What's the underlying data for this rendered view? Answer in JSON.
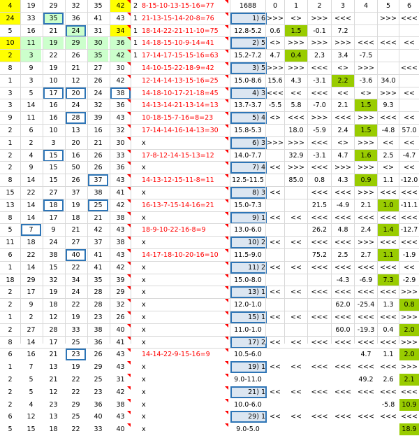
{
  "header_label": "1688",
  "col_headers": [
    "0",
    "1",
    "2",
    "3",
    "4",
    "5",
    "6"
  ],
  "rows": [
    {
      "nums": [
        "4",
        "19",
        "29",
        "32",
        "35",
        "42"
      ],
      "hl": [
        "y",
        "",
        "",
        "",
        "",
        "y"
      ],
      "box": [],
      "n": "2",
      "seq": "8-15-10-13-15-16=77",
      "red": [],
      "sc": "",
      "ratio": "",
      "v": []
    },
    {
      "nums": [
        "24",
        "33",
        "35",
        "36",
        "41",
        "43"
      ],
      "hl": [
        "y",
        "",
        "g",
        "",
        "",
        ""
      ],
      "box": [
        2
      ],
      "n": "1",
      "seq": "21-13-15-14-20-8=76",
      "sc": "1)   6",
      "ratio": "",
      "v": [
        ">>>",
        "<>",
        ">>>",
        "<<<",
        "",
        ">>>",
        "<<<"
      ]
    },
    {
      "nums": [
        "5",
        "16",
        "21",
        "24",
        "31",
        "34"
      ],
      "hl": [
        "",
        "",
        "",
        "g",
        "",
        "y"
      ],
      "box": [
        3
      ],
      "n": "1",
      "seq": "18-14-22-21-11-10=75",
      "sc": "",
      "ratio": "12.8-5.2",
      "v": [
        "0.6",
        "1.5",
        "-0.1",
        "7.2",
        "",
        "",
        ""
      ],
      "vhl": [
        "",
        "lg",
        "",
        "",
        "",
        "",
        ""
      ]
    },
    {
      "nums": [
        "10",
        "11",
        "19",
        "29",
        "30",
        "36"
      ],
      "hl": [
        "y",
        "g",
        "g",
        "g",
        "g",
        "g"
      ],
      "box": [],
      "n": "1",
      "seq": "14-18-15-10-9-14=41",
      "sc": "2)   5",
      "ratio": "",
      "v": [
        "<>",
        ">>>",
        ">>>",
        ">>>",
        "<<<",
        "<<<",
        "<<"
      ]
    },
    {
      "nums": [
        "2",
        "3",
        "22",
        "26",
        "35",
        "42"
      ],
      "hl": [
        "y",
        "g",
        "",
        "",
        "g",
        "g"
      ],
      "box": [],
      "n": "1",
      "seq": "17-14-17-15-15-16=63",
      "sc": "",
      "ratio": "15.2-7.2",
      "v": [
        "4.7",
        "0.4",
        "2.3",
        "3.4",
        "-7.5",
        "",
        ""
      ],
      "vhl": [
        "",
        "lg",
        "",
        "",
        "",
        "",
        ""
      ]
    },
    {
      "nums": [
        "8",
        "9",
        "19",
        "21",
        "27",
        "30"
      ],
      "hl": [],
      "box": [],
      "n": "",
      "seq": "14-10-15-22-18-9=42",
      "sc": "3)   5",
      "ratio": "",
      "v": [
        ">>>",
        ">>>",
        "<<<",
        "<>",
        ">>>",
        "",
        "<<<"
      ],
      "vhl": [
        "",
        "",
        "pu",
        "",
        "",
        "",
        ""
      ]
    },
    {
      "nums": [
        "1",
        "3",
        "10",
        "12",
        "26",
        "42"
      ],
      "hl": [],
      "box": [],
      "n": "",
      "seq": "12-14-14-13-15-16=25",
      "sc": "",
      "ratio": "15.0-8.6",
      "v": [
        "15.6",
        "4.3",
        "-3.1",
        "2.2",
        "-3.6",
        "34.0",
        ""
      ],
      "vhl": [
        "",
        "",
        "",
        "lg",
        "",
        "",
        ""
      ]
    },
    {
      "nums": [
        "3",
        "5",
        "17",
        "20",
        "24",
        "38"
      ],
      "hl": [],
      "box": [
        2,
        3,
        5
      ],
      "n": "",
      "seq": "14-18-10-17-21-18=45",
      "sc": "4)   3",
      "ratio": "",
      "v": [
        "<<<",
        "<<",
        "<<<",
        "<<",
        "<>",
        ">>>",
        "<<"
      ]
    },
    {
      "nums": [
        "3",
        "14",
        "16",
        "24",
        "32",
        "36"
      ],
      "hl": [],
      "box": [],
      "n": "",
      "seq": "14-13-14-21-13-14=13",
      "sc": "",
      "ratio": "13.7-3.7",
      "v": [
        "-5.5",
        "5.8",
        "-7.0",
        "2.1",
        "1.5",
        "9.3",
        ""
      ],
      "vhl": [
        "",
        "",
        "",
        "",
        "lg",
        "",
        ""
      ]
    },
    {
      "nums": [
        "9",
        "11",
        "16",
        "28",
        "39",
        "43"
      ],
      "hl": [],
      "box": [
        3
      ],
      "n": "",
      "seq": "10-18-15-7-16=8=23",
      "sc": "5)   4",
      "ratio": "",
      "v": [
        "<>",
        "<<<",
        ">>>",
        "<<<",
        ">>>",
        "<<<",
        "<<"
      ]
    },
    {
      "nums": [
        "2",
        "6",
        "10",
        "13",
        "16",
        "32"
      ],
      "hl": [],
      "box": [],
      "n": "",
      "seq": "17-14-14-16-14-13=30",
      "sc": "",
      "ratio": "15.8-5.3",
      "v": [
        "",
        "18.0",
        "-5.9",
        "2.4",
        "1.5",
        "-4.8",
        "57.0"
      ],
      "vhl": [
        "",
        "",
        "",
        "",
        "lg",
        "",
        ""
      ]
    },
    {
      "nums": [
        "1",
        "2",
        "3",
        "20",
        "21",
        "30"
      ],
      "hl": [],
      "box": [],
      "n": "",
      "seq": "x",
      "sc": "6)   3",
      "ratio": "",
      "v": [
        ">>>",
        ">>>",
        "<<<",
        "<>",
        ">>>",
        "<<",
        "<<"
      ]
    },
    {
      "nums": [
        "2",
        "4",
        "15",
        "16",
        "26",
        "33"
      ],
      "hl": [],
      "box": [
        2
      ],
      "n": "",
      "seq": "17-8-12-14-15-13=12",
      "sc": "",
      "ratio": "14.0-7.7",
      "v": [
        "",
        "32.9",
        "-3.1",
        "4.7",
        "1.6",
        "2.5",
        "-4.7"
      ],
      "vhl": [
        "",
        "",
        "",
        "",
        "lg",
        "",
        ""
      ]
    },
    {
      "nums": [
        "2",
        "9",
        "15",
        "50",
        "26",
        "36"
      ],
      "hl": [],
      "box": [],
      "n": "",
      "seq": "x",
      "sc": "7)   4",
      "ratio": "",
      "v": [
        "<<",
        ">>>",
        "<<<",
        ">>>",
        ">>>",
        "<>",
        "<<"
      ]
    },
    {
      "nums": [
        "8",
        "14",
        "15",
        "26",
        "37",
        "43"
      ],
      "hl": [],
      "box": [
        4
      ],
      "n": "",
      "seq": "14-13-12-15-11-8=11",
      "sc": "",
      "ratio": "12.5-11.5",
      "v": [
        "",
        "85.0",
        "0.8",
        "4.3",
        "0.9",
        "1.1",
        "-12.0"
      ],
      "vhl": [
        "",
        "",
        "",
        "",
        "lg",
        "",
        ""
      ]
    },
    {
      "nums": [
        "15",
        "22",
        "27",
        "37",
        "38",
        "41"
      ],
      "hl": [],
      "box": [],
      "n": "",
      "seq": "x",
      "sc": "8)   3",
      "ratio": "",
      "v": [
        "<<",
        "",
        "<<<",
        "<<<",
        ">>>",
        "<<<",
        "<<<"
      ]
    },
    {
      "nums": [
        "13",
        "14",
        "18",
        "19",
        "25",
        "42"
      ],
      "hl": [],
      "box": [
        2,
        4
      ],
      "n": "",
      "seq": "16-13-7-15-14-16=21",
      "sc": "",
      "ratio": "15.0-7.3",
      "v": [
        "",
        "",
        "21.5",
        "-4.9",
        "2.1",
        "1.0",
        "-11.1"
      ],
      "vhl": [
        "",
        "",
        "",
        "",
        "",
        "lg",
        ""
      ]
    },
    {
      "nums": [
        "8",
        "14",
        "17",
        "18",
        "21",
        "38"
      ],
      "hl": [],
      "box": [],
      "n": "",
      "seq": "x",
      "sc": "9)   1",
      "ratio": "",
      "v": [
        "<<",
        "<<",
        "<<<",
        "<<<",
        "<<<",
        "<<<",
        "<<<"
      ]
    },
    {
      "nums": [
        "5",
        "7",
        "9",
        "21",
        "42",
        "43"
      ],
      "hl": [],
      "box": [
        1
      ],
      "n": "",
      "seq": "18-9-10-22-16-8=9",
      "sc": "",
      "ratio": "13.0-6.0",
      "v": [
        "",
        "",
        "26.2",
        "4.8",
        "2.4",
        "1.4",
        "-12.7"
      ],
      "vhl": [
        "",
        "",
        "",
        "",
        "",
        "lg",
        ""
      ]
    },
    {
      "nums": [
        "11",
        "18",
        "24",
        "27",
        "37",
        "38"
      ],
      "hl": [],
      "box": [],
      "n": "",
      "seq": "x",
      "sc": "10)  2",
      "ratio": "",
      "v": [
        "<<",
        "<<",
        "<<<",
        "<<<",
        ">>>",
        "<<<",
        "<<<"
      ]
    },
    {
      "nums": [
        "6",
        "22",
        "38",
        "40",
        "41",
        "43"
      ],
      "hl": [],
      "box": [
        3
      ],
      "n": "",
      "seq": "14-17-18-10-20-16=10",
      "sc": "",
      "ratio": "11.5-9.0",
      "v": [
        "",
        "",
        "75.2",
        "2.5",
        "2.7",
        "1.1",
        "-1.9"
      ],
      "vhl": [
        "",
        "",
        "",
        "",
        "",
        "lg",
        ""
      ]
    },
    {
      "nums": [
        "1",
        "14",
        "15",
        "22",
        "41",
        "42"
      ],
      "hl": [],
      "box": [],
      "n": "",
      "seq": "x",
      "sc": "11)  2",
      "ratio": "",
      "v": [
        "<<",
        "<<",
        "<<<",
        "<<<",
        "<<<",
        "<<<",
        "<<"
      ]
    },
    {
      "nums": [
        "18",
        "29",
        "32",
        "34",
        "35",
        "39"
      ],
      "hl": [],
      "box": [],
      "n": "",
      "seq": "x",
      "sc": "",
      "ratio": "15.0-8.0",
      "v": [
        "",
        "",
        "",
        "-4.3",
        "-6.9",
        "7.3",
        "-2.9"
      ],
      "vhl": [
        "",
        "",
        "",
        "",
        "",
        "lg",
        ""
      ]
    },
    {
      "nums": [
        "2",
        "17",
        "19",
        "24",
        "28",
        "29"
      ],
      "hl": [],
      "box": [],
      "n": "",
      "seq": "x",
      "sc": "13)  1",
      "ratio": "",
      "v": [
        "<<",
        "<<",
        "<<<",
        "<<<",
        "<<<",
        "<<<",
        ">>>"
      ]
    },
    {
      "nums": [
        "2",
        "9",
        "18",
        "22",
        "28",
        "32"
      ],
      "hl": [],
      "box": [],
      "n": "",
      "seq": "x",
      "sc": "",
      "ratio": "12.0-1.0",
      "v": [
        "",
        "",
        "",
        "62.0",
        "-25.4",
        "1.3",
        "0.8"
      ],
      "vhl": [
        "",
        "",
        "",
        "",
        "",
        "",
        "lg"
      ]
    },
    {
      "nums": [
        "1",
        "2",
        "12",
        "19",
        "23",
        "26"
      ],
      "hl": [],
      "box": [],
      "n": "",
      "seq": "x",
      "sc": "15)  1",
      "ratio": "",
      "v": [
        "<<",
        "<<",
        "<<<",
        "<<<",
        "<<<",
        "<<<",
        ">>>"
      ]
    },
    {
      "nums": [
        "2",
        "27",
        "28",
        "33",
        "38",
        "40"
      ],
      "hl": [],
      "box": [],
      "n": "",
      "seq": "x",
      "sc": "",
      "ratio": "11.0-1.0",
      "v": [
        "",
        "",
        "",
        "60.0",
        "-19.3",
        "0.4",
        "2.0"
      ],
      "vhl": [
        "",
        "",
        "",
        "",
        "",
        "",
        "lg"
      ]
    },
    {
      "nums": [
        "8",
        "14",
        "17",
        "25",
        "36",
        "41"
      ],
      "hl": [],
      "box": [],
      "n": "",
      "seq": "x",
      "sc": "17)  2",
      "ratio": "",
      "v": [
        "<<",
        "<<",
        "<<<",
        "<<<",
        "<<<",
        "<<<",
        ">>>"
      ]
    },
    {
      "nums": [
        "6",
        "16",
        "21",
        "23",
        "26",
        "43"
      ],
      "hl": [],
      "box": [
        3
      ],
      "n": "",
      "seq": "14-14-22-9-15-16=9",
      "sc": "",
      "ratio": "10.5-6.0",
      "v": [
        "",
        "",
        "",
        "",
        "4.7",
        "1.1",
        "2.0"
      ],
      "vhl": [
        "",
        "",
        "",
        "",
        "",
        "",
        "lg"
      ]
    },
    {
      "nums": [
        "1",
        "7",
        "13",
        "19",
        "29",
        "43"
      ],
      "hl": [],
      "box": [],
      "n": "",
      "seq": "x",
      "sc": "19)  1",
      "ratio": "",
      "v": [
        "<<",
        "<<",
        "<<<",
        "<<<",
        "<<<",
        "<<<",
        ">>>"
      ]
    },
    {
      "nums": [
        "2",
        "5",
        "21",
        "22",
        "25",
        "31"
      ],
      "hl": [],
      "box": [],
      "n": "",
      "seq": "x",
      "sc": "",
      "ratio": "9.0-11.0",
      "v": [
        "",
        "",
        "",
        "",
        "49.2",
        "2.6",
        "2.1"
      ],
      "vhl": [
        "",
        "",
        "",
        "",
        "",
        "",
        "lg"
      ]
    },
    {
      "nums": [
        "2",
        "5",
        "12",
        "22",
        "23",
        "42"
      ],
      "hl": [],
      "box": [],
      "n": "",
      "seq": "x",
      "sc": "21)  1",
      "ratio": "",
      "v": [
        "<<",
        "<<",
        "<<<",
        "<<<",
        "<<<",
        "<<<",
        "<<<"
      ]
    },
    {
      "nums": [
        "2",
        "4",
        "23",
        "29",
        "36",
        "38"
      ],
      "hl": [],
      "box": [],
      "n": "",
      "seq": "x",
      "sc": "",
      "ratio": "10.0-6.0",
      "v": [
        "",
        "",
        "",
        "",
        "",
        "-5.8",
        "10.9"
      ],
      "vhl": [
        "",
        "",
        "",
        "",
        "",
        "",
        "lg"
      ]
    },
    {
      "nums": [
        "6",
        "12",
        "13",
        "25",
        "40",
        "43"
      ],
      "hl": [],
      "box": [],
      "n": "",
      "seq": "x",
      "sc": "29)  1",
      "ratio": "",
      "v": [
        "<<",
        "<<",
        "<<<",
        "<<<",
        "<<<",
        "<<<",
        "<<<"
      ]
    },
    {
      "nums": [
        "5",
        "15",
        "18",
        "22",
        "33",
        "40"
      ],
      "hl": [],
      "box": [],
      "n": "",
      "seq": "x",
      "sc": "",
      "ratio": "9.0-5.0",
      "v": [
        "",
        "",
        "",
        "",
        "",
        "",
        "18.9"
      ],
      "vhl": [
        "",
        "",
        "",
        "",
        "",
        "",
        "lg"
      ]
    }
  ]
}
